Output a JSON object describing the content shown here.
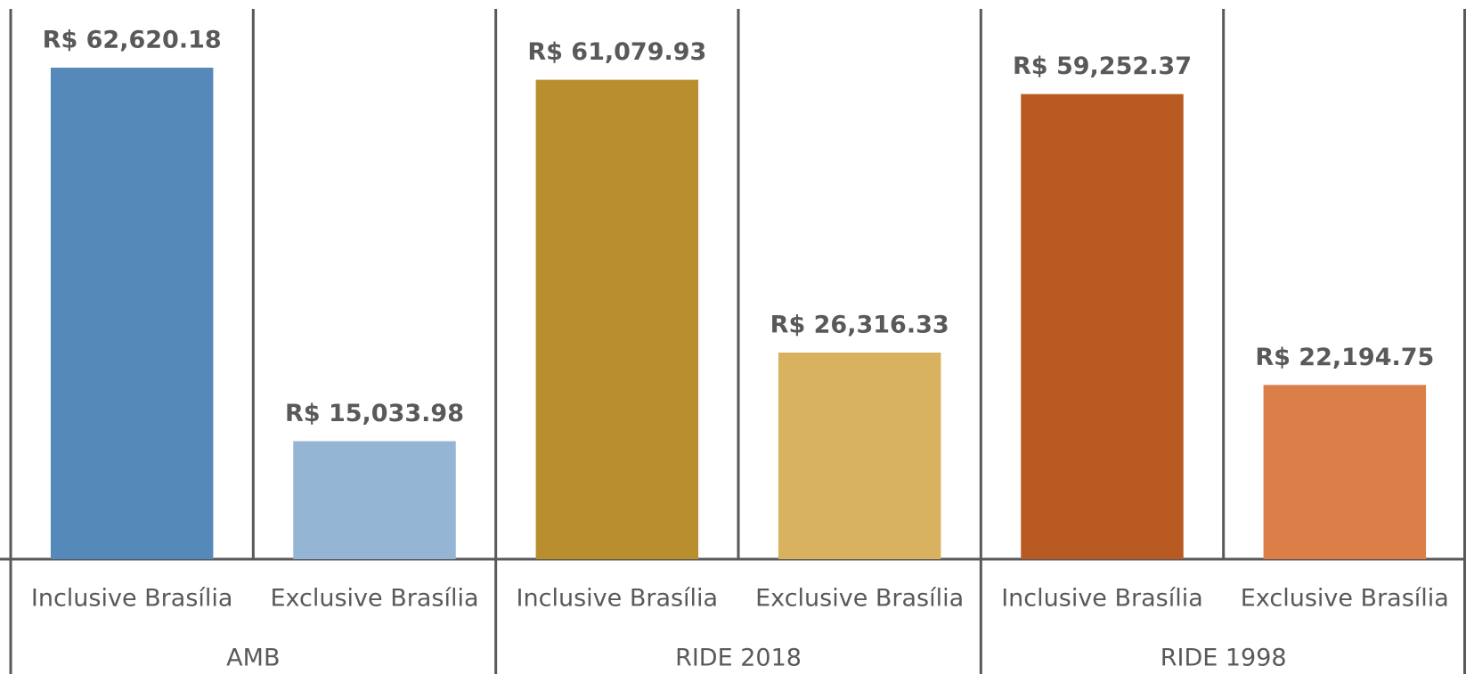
{
  "chart_data": {
    "type": "bar",
    "categories": [
      "Inclusive Brasília",
      "Exclusive Brasília",
      "Inclusive Brasília",
      "Exclusive Brasília",
      "Inclusive Brasília",
      "Exclusive Brasília"
    ],
    "groups": [
      "AMB",
      "RIDE 2018",
      "RIDE 1998"
    ],
    "values": [
      62620.18,
      15033.98,
      61079.93,
      26316.33,
      59252.37,
      22194.75
    ],
    "value_labels": [
      "R$ 62,620.18",
      "R$ 15,033.98",
      "R$ 61,079.93",
      "R$ 26,316.33",
      "R$ 59,252.37",
      "R$ 22,194.75"
    ],
    "colors": [
      "#5589ba",
      "#94b5d4",
      "#b98e2f",
      "#d8b25e",
      "#b85a22",
      "#dc7e47"
    ]
  }
}
